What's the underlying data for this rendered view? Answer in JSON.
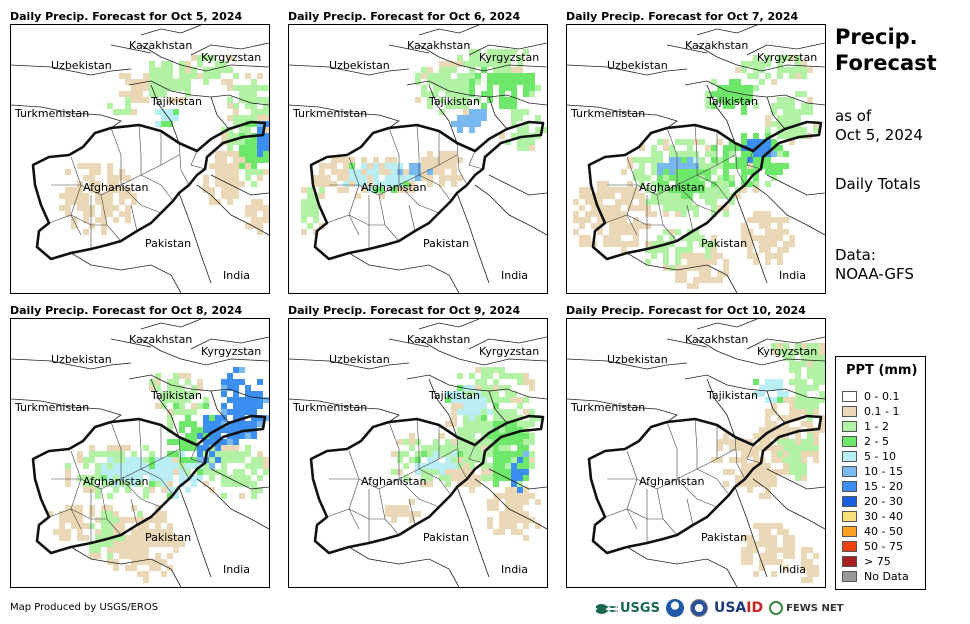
{
  "panels": [
    {
      "title": "Daily Precip. Forecast for Oct 5, 2024"
    },
    {
      "title": "Daily Precip. Forecast for Oct 6, 2024"
    },
    {
      "title": "Daily Precip. Forecast for Oct 7, 2024"
    },
    {
      "title": "Daily Precip. Forecast for Oct 8, 2024"
    },
    {
      "title": "Daily Precip. Forecast for Oct 9, 2024"
    },
    {
      "title": "Daily Precip. Forecast for Oct 10, 2024"
    }
  ],
  "labels": {
    "kazakhstan": "Kazakhstan",
    "kyrgyzstan": "Kyrgyzstan",
    "uzbekistan": "Uzbekistan",
    "tajikistan": "Tajikistan",
    "turkmenistan": "Turkmenistan",
    "afghanistan": "Afghanistan",
    "pakistan": "Pakistan",
    "india": "India"
  },
  "side": {
    "title_line1": "Precip.",
    "title_line2": "Forecast",
    "asof_line1": "as of",
    "asof_line2": "Oct 5, 2024",
    "totals": "Daily Totals",
    "data_line1": "Data:",
    "data_line2": "NOAA-GFS"
  },
  "legend": {
    "title": "PPT (mm)",
    "items": [
      {
        "label": "0 - 0.1",
        "color": "#ffffff"
      },
      {
        "label": "0.1 - 1",
        "color": "#ead8b6"
      },
      {
        "label": "1 - 2",
        "color": "#b2f2a4"
      },
      {
        "label": "2 - 5",
        "color": "#6ee86a"
      },
      {
        "label": "5 - 10",
        "color": "#b8eef4"
      },
      {
        "label": "10 - 15",
        "color": "#7ab8f0"
      },
      {
        "label": "15 - 20",
        "color": "#3c8ff0"
      },
      {
        "label": "20 - 30",
        "color": "#1a5ee0"
      },
      {
        "label": "30 - 40",
        "color": "#f8e07a"
      },
      {
        "label": "40 - 50",
        "color": "#f8a020"
      },
      {
        "label": "50 - 75",
        "color": "#f04010"
      },
      {
        "label": "> 75",
        "color": "#a82020"
      },
      {
        "label": "No Data",
        "color": "#999999"
      }
    ]
  },
  "footer": {
    "credit": "Map Produced by USGS/EROS",
    "usgs": "USGS",
    "usaid_a": "USA",
    "usaid_b": "ID",
    "fews": "FEWS NET"
  }
}
